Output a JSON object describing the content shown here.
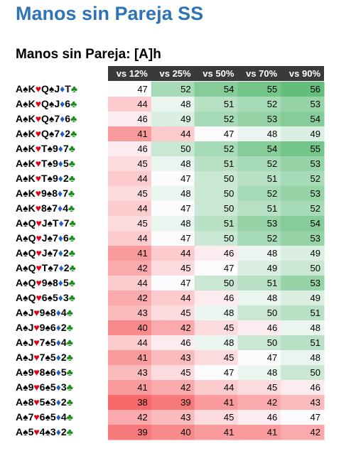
{
  "page": {
    "title": "Manos sin Pareja SS",
    "subtitle": "Manos sin Pareja: [A]h"
  },
  "colors": {
    "header_bg": "#3a3a3a",
    "header_text": "#ffffff",
    "title": "#2e74b5",
    "heart": "#e0001a",
    "diamond": "#1f5fbf",
    "club": "#1a8c1a",
    "spade": "#000000",
    "scale_low": "#f8696b",
    "scale_mid": "#fcfcff",
    "scale_high": "#63be7b"
  },
  "chart_data": {
    "type": "heatmap",
    "title": "Manos sin Pareja: [A]h",
    "columns": [
      "vs 12%",
      "vs 25%",
      "vs 50%",
      "vs 70%",
      "vs 90%"
    ],
    "rows": [
      {
        "hand": [
          [
            "A",
            "spade"
          ],
          [
            "K",
            "heart"
          ],
          [
            "Q",
            "spade"
          ],
          [
            "J",
            "diamond"
          ],
          [
            "T",
            "club"
          ]
        ],
        "values": [
          47,
          52,
          54,
          55,
          56
        ]
      },
      {
        "hand": [
          [
            "A",
            "spade"
          ],
          [
            "K",
            "heart"
          ],
          [
            "Q",
            "spade"
          ],
          [
            "J",
            "diamond"
          ],
          [
            "6",
            "club"
          ]
        ],
        "values": [
          44,
          48,
          51,
          52,
          53
        ]
      },
      {
        "hand": [
          [
            "A",
            "spade"
          ],
          [
            "K",
            "heart"
          ],
          [
            "Q",
            "spade"
          ],
          [
            "7",
            "diamond"
          ],
          [
            "6",
            "club"
          ]
        ],
        "values": [
          46,
          49,
          52,
          53,
          54
        ]
      },
      {
        "hand": [
          [
            "A",
            "spade"
          ],
          [
            "K",
            "heart"
          ],
          [
            "Q",
            "spade"
          ],
          [
            "7",
            "diamond"
          ],
          [
            "2",
            "club"
          ]
        ],
        "values": [
          41,
          44,
          47,
          48,
          49
        ]
      },
      {
        "hand": [
          [
            "A",
            "spade"
          ],
          [
            "K",
            "heart"
          ],
          [
            "T",
            "spade"
          ],
          [
            "9",
            "diamond"
          ],
          [
            "7",
            "club"
          ]
        ],
        "values": [
          46,
          50,
          52,
          54,
          55
        ]
      },
      {
        "hand": [
          [
            "A",
            "spade"
          ],
          [
            "K",
            "heart"
          ],
          [
            "T",
            "spade"
          ],
          [
            "9",
            "diamond"
          ],
          [
            "5",
            "club"
          ]
        ],
        "values": [
          45,
          48,
          51,
          52,
          53
        ]
      },
      {
        "hand": [
          [
            "A",
            "spade"
          ],
          [
            "K",
            "heart"
          ],
          [
            "T",
            "spade"
          ],
          [
            "9",
            "diamond"
          ],
          [
            "2",
            "club"
          ]
        ],
        "values": [
          44,
          47,
          50,
          51,
          52
        ]
      },
      {
        "hand": [
          [
            "A",
            "spade"
          ],
          [
            "K",
            "heart"
          ],
          [
            "9",
            "spade"
          ],
          [
            "8",
            "diamond"
          ],
          [
            "7",
            "club"
          ]
        ],
        "values": [
          45,
          48,
          50,
          52,
          53
        ]
      },
      {
        "hand": [
          [
            "A",
            "spade"
          ],
          [
            "K",
            "heart"
          ],
          [
            "8",
            "spade"
          ],
          [
            "7",
            "diamond"
          ],
          [
            "4",
            "club"
          ]
        ],
        "values": [
          44,
          47,
          50,
          51,
          52
        ]
      },
      {
        "hand": [
          [
            "A",
            "spade"
          ],
          [
            "Q",
            "heart"
          ],
          [
            "J",
            "spade"
          ],
          [
            "T",
            "diamond"
          ],
          [
            "7",
            "club"
          ]
        ],
        "values": [
          45,
          48,
          51,
          53,
          54
        ]
      },
      {
        "hand": [
          [
            "A",
            "spade"
          ],
          [
            "Q",
            "heart"
          ],
          [
            "J",
            "spade"
          ],
          [
            "7",
            "diamond"
          ],
          [
            "6",
            "club"
          ]
        ],
        "values": [
          44,
          47,
          50,
          52,
          53
        ]
      },
      {
        "hand": [
          [
            "A",
            "spade"
          ],
          [
            "Q",
            "heart"
          ],
          [
            "J",
            "spade"
          ],
          [
            "7",
            "diamond"
          ],
          [
            "2",
            "club"
          ]
        ],
        "values": [
          41,
          44,
          46,
          48,
          49
        ]
      },
      {
        "hand": [
          [
            "A",
            "spade"
          ],
          [
            "Q",
            "heart"
          ],
          [
            "T",
            "spade"
          ],
          [
            "7",
            "diamond"
          ],
          [
            "2",
            "club"
          ]
        ],
        "values": [
          42,
          45,
          47,
          49,
          50
        ]
      },
      {
        "hand": [
          [
            "A",
            "spade"
          ],
          [
            "Q",
            "heart"
          ],
          [
            "9",
            "spade"
          ],
          [
            "8",
            "diamond"
          ],
          [
            "5",
            "club"
          ]
        ],
        "values": [
          44,
          47,
          50,
          51,
          53
        ]
      },
      {
        "hand": [
          [
            "A",
            "spade"
          ],
          [
            "Q",
            "heart"
          ],
          [
            "6",
            "spade"
          ],
          [
            "5",
            "diamond"
          ],
          [
            "3",
            "club"
          ]
        ],
        "values": [
          42,
          44,
          46,
          48,
          49
        ]
      },
      {
        "hand": [
          [
            "A",
            "spade"
          ],
          [
            "J",
            "heart"
          ],
          [
            "9",
            "spade"
          ],
          [
            "8",
            "diamond"
          ],
          [
            "4",
            "club"
          ]
        ],
        "values": [
          43,
          45,
          48,
          50,
          51
        ]
      },
      {
        "hand": [
          [
            "A",
            "spade"
          ],
          [
            "J",
            "heart"
          ],
          [
            "9",
            "spade"
          ],
          [
            "6",
            "diamond"
          ],
          [
            "2",
            "club"
          ]
        ],
        "values": [
          40,
          42,
          45,
          46,
          48
        ]
      },
      {
        "hand": [
          [
            "A",
            "spade"
          ],
          [
            "J",
            "heart"
          ],
          [
            "7",
            "spade"
          ],
          [
            "5",
            "diamond"
          ],
          [
            "4",
            "club"
          ]
        ],
        "values": [
          44,
          46,
          48,
          50,
          51
        ]
      },
      {
        "hand": [
          [
            "A",
            "spade"
          ],
          [
            "J",
            "heart"
          ],
          [
            "7",
            "spade"
          ],
          [
            "5",
            "diamond"
          ],
          [
            "2",
            "club"
          ]
        ],
        "values": [
          41,
          43,
          45,
          47,
          48
        ]
      },
      {
        "hand": [
          [
            "A",
            "spade"
          ],
          [
            "9",
            "heart"
          ],
          [
            "8",
            "spade"
          ],
          [
            "6",
            "diamond"
          ],
          [
            "5",
            "club"
          ]
        ],
        "values": [
          43,
          45,
          47,
          48,
          50
        ]
      },
      {
        "hand": [
          [
            "A",
            "spade"
          ],
          [
            "9",
            "heart"
          ],
          [
            "6",
            "spade"
          ],
          [
            "5",
            "diamond"
          ],
          [
            "3",
            "club"
          ]
        ],
        "values": [
          41,
          42,
          44,
          45,
          46
        ]
      },
      {
        "hand": [
          [
            "A",
            "spade"
          ],
          [
            "8",
            "heart"
          ],
          [
            "5",
            "spade"
          ],
          [
            "3",
            "diamond"
          ],
          [
            "2",
            "club"
          ]
        ],
        "values": [
          38,
          39,
          41,
          42,
          43
        ]
      },
      {
        "hand": [
          [
            "A",
            "spade"
          ],
          [
            "7",
            "heart"
          ],
          [
            "6",
            "spade"
          ],
          [
            "5",
            "diamond"
          ],
          [
            "4",
            "club"
          ]
        ],
        "values": [
          42,
          43,
          45,
          46,
          47
        ]
      },
      {
        "hand": [
          [
            "A",
            "spade"
          ],
          [
            "5",
            "heart"
          ],
          [
            "4",
            "spade"
          ],
          [
            "3",
            "diamond"
          ],
          [
            "2",
            "club"
          ]
        ],
        "values": [
          39,
          40,
          41,
          41,
          42
        ]
      }
    ]
  }
}
